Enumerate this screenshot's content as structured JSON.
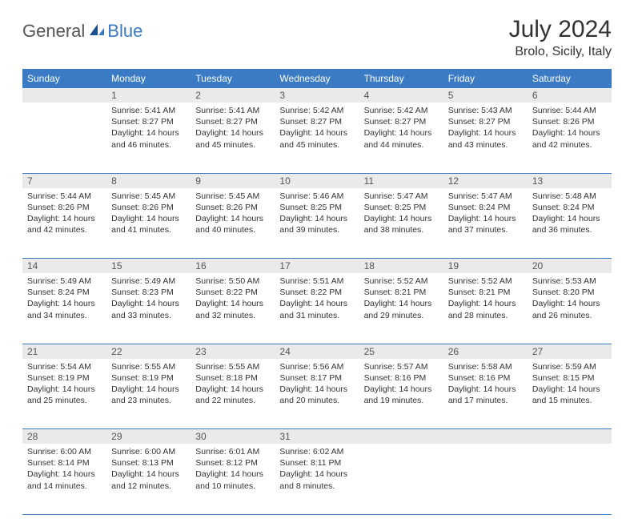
{
  "logo": {
    "general": "General",
    "blue": "Blue"
  },
  "title": "July 2024",
  "location": "Brolo, Sicily, Italy",
  "headers": [
    "Sunday",
    "Monday",
    "Tuesday",
    "Wednesday",
    "Thursday",
    "Friday",
    "Saturday"
  ],
  "colors": {
    "header_bg": "#3a7bc4",
    "header_text": "#ffffff",
    "daynum_bg": "#eaeaea",
    "border": "#3a7bc4",
    "text": "#333333",
    "logo_gray": "#555555",
    "logo_blue": "#3a7bc4",
    "bg": "#ffffff"
  },
  "weeks": [
    [
      {
        "day": "",
        "sunrise": "",
        "sunset": "",
        "daylight1": "",
        "daylight2": ""
      },
      {
        "day": "1",
        "sunrise": "Sunrise: 5:41 AM",
        "sunset": "Sunset: 8:27 PM",
        "daylight1": "Daylight: 14 hours",
        "daylight2": "and 46 minutes."
      },
      {
        "day": "2",
        "sunrise": "Sunrise: 5:41 AM",
        "sunset": "Sunset: 8:27 PM",
        "daylight1": "Daylight: 14 hours",
        "daylight2": "and 45 minutes."
      },
      {
        "day": "3",
        "sunrise": "Sunrise: 5:42 AM",
        "sunset": "Sunset: 8:27 PM",
        "daylight1": "Daylight: 14 hours",
        "daylight2": "and 45 minutes."
      },
      {
        "day": "4",
        "sunrise": "Sunrise: 5:42 AM",
        "sunset": "Sunset: 8:27 PM",
        "daylight1": "Daylight: 14 hours",
        "daylight2": "and 44 minutes."
      },
      {
        "day": "5",
        "sunrise": "Sunrise: 5:43 AM",
        "sunset": "Sunset: 8:27 PM",
        "daylight1": "Daylight: 14 hours",
        "daylight2": "and 43 minutes."
      },
      {
        "day": "6",
        "sunrise": "Sunrise: 5:44 AM",
        "sunset": "Sunset: 8:26 PM",
        "daylight1": "Daylight: 14 hours",
        "daylight2": "and 42 minutes."
      }
    ],
    [
      {
        "day": "7",
        "sunrise": "Sunrise: 5:44 AM",
        "sunset": "Sunset: 8:26 PM",
        "daylight1": "Daylight: 14 hours",
        "daylight2": "and 42 minutes."
      },
      {
        "day": "8",
        "sunrise": "Sunrise: 5:45 AM",
        "sunset": "Sunset: 8:26 PM",
        "daylight1": "Daylight: 14 hours",
        "daylight2": "and 41 minutes."
      },
      {
        "day": "9",
        "sunrise": "Sunrise: 5:45 AM",
        "sunset": "Sunset: 8:26 PM",
        "daylight1": "Daylight: 14 hours",
        "daylight2": "and 40 minutes."
      },
      {
        "day": "10",
        "sunrise": "Sunrise: 5:46 AM",
        "sunset": "Sunset: 8:25 PM",
        "daylight1": "Daylight: 14 hours",
        "daylight2": "and 39 minutes."
      },
      {
        "day": "11",
        "sunrise": "Sunrise: 5:47 AM",
        "sunset": "Sunset: 8:25 PM",
        "daylight1": "Daylight: 14 hours",
        "daylight2": "and 38 minutes."
      },
      {
        "day": "12",
        "sunrise": "Sunrise: 5:47 AM",
        "sunset": "Sunset: 8:24 PM",
        "daylight1": "Daylight: 14 hours",
        "daylight2": "and 37 minutes."
      },
      {
        "day": "13",
        "sunrise": "Sunrise: 5:48 AM",
        "sunset": "Sunset: 8:24 PM",
        "daylight1": "Daylight: 14 hours",
        "daylight2": "and 36 minutes."
      }
    ],
    [
      {
        "day": "14",
        "sunrise": "Sunrise: 5:49 AM",
        "sunset": "Sunset: 8:24 PM",
        "daylight1": "Daylight: 14 hours",
        "daylight2": "and 34 minutes."
      },
      {
        "day": "15",
        "sunrise": "Sunrise: 5:49 AM",
        "sunset": "Sunset: 8:23 PM",
        "daylight1": "Daylight: 14 hours",
        "daylight2": "and 33 minutes."
      },
      {
        "day": "16",
        "sunrise": "Sunrise: 5:50 AM",
        "sunset": "Sunset: 8:22 PM",
        "daylight1": "Daylight: 14 hours",
        "daylight2": "and 32 minutes."
      },
      {
        "day": "17",
        "sunrise": "Sunrise: 5:51 AM",
        "sunset": "Sunset: 8:22 PM",
        "daylight1": "Daylight: 14 hours",
        "daylight2": "and 31 minutes."
      },
      {
        "day": "18",
        "sunrise": "Sunrise: 5:52 AM",
        "sunset": "Sunset: 8:21 PM",
        "daylight1": "Daylight: 14 hours",
        "daylight2": "and 29 minutes."
      },
      {
        "day": "19",
        "sunrise": "Sunrise: 5:52 AM",
        "sunset": "Sunset: 8:21 PM",
        "daylight1": "Daylight: 14 hours",
        "daylight2": "and 28 minutes."
      },
      {
        "day": "20",
        "sunrise": "Sunrise: 5:53 AM",
        "sunset": "Sunset: 8:20 PM",
        "daylight1": "Daylight: 14 hours",
        "daylight2": "and 26 minutes."
      }
    ],
    [
      {
        "day": "21",
        "sunrise": "Sunrise: 5:54 AM",
        "sunset": "Sunset: 8:19 PM",
        "daylight1": "Daylight: 14 hours",
        "daylight2": "and 25 minutes."
      },
      {
        "day": "22",
        "sunrise": "Sunrise: 5:55 AM",
        "sunset": "Sunset: 8:19 PM",
        "daylight1": "Daylight: 14 hours",
        "daylight2": "and 23 minutes."
      },
      {
        "day": "23",
        "sunrise": "Sunrise: 5:55 AM",
        "sunset": "Sunset: 8:18 PM",
        "daylight1": "Daylight: 14 hours",
        "daylight2": "and 22 minutes."
      },
      {
        "day": "24",
        "sunrise": "Sunrise: 5:56 AM",
        "sunset": "Sunset: 8:17 PM",
        "daylight1": "Daylight: 14 hours",
        "daylight2": "and 20 minutes."
      },
      {
        "day": "25",
        "sunrise": "Sunrise: 5:57 AM",
        "sunset": "Sunset: 8:16 PM",
        "daylight1": "Daylight: 14 hours",
        "daylight2": "and 19 minutes."
      },
      {
        "day": "26",
        "sunrise": "Sunrise: 5:58 AM",
        "sunset": "Sunset: 8:16 PM",
        "daylight1": "Daylight: 14 hours",
        "daylight2": "and 17 minutes."
      },
      {
        "day": "27",
        "sunrise": "Sunrise: 5:59 AM",
        "sunset": "Sunset: 8:15 PM",
        "daylight1": "Daylight: 14 hours",
        "daylight2": "and 15 minutes."
      }
    ],
    [
      {
        "day": "28",
        "sunrise": "Sunrise: 6:00 AM",
        "sunset": "Sunset: 8:14 PM",
        "daylight1": "Daylight: 14 hours",
        "daylight2": "and 14 minutes."
      },
      {
        "day": "29",
        "sunrise": "Sunrise: 6:00 AM",
        "sunset": "Sunset: 8:13 PM",
        "daylight1": "Daylight: 14 hours",
        "daylight2": "and 12 minutes."
      },
      {
        "day": "30",
        "sunrise": "Sunrise: 6:01 AM",
        "sunset": "Sunset: 8:12 PM",
        "daylight1": "Daylight: 14 hours",
        "daylight2": "and 10 minutes."
      },
      {
        "day": "31",
        "sunrise": "Sunrise: 6:02 AM",
        "sunset": "Sunset: 8:11 PM",
        "daylight1": "Daylight: 14 hours",
        "daylight2": "and 8 minutes."
      },
      {
        "day": "",
        "sunrise": "",
        "sunset": "",
        "daylight1": "",
        "daylight2": ""
      },
      {
        "day": "",
        "sunrise": "",
        "sunset": "",
        "daylight1": "",
        "daylight2": ""
      },
      {
        "day": "",
        "sunrise": "",
        "sunset": "",
        "daylight1": "",
        "daylight2": ""
      }
    ]
  ]
}
